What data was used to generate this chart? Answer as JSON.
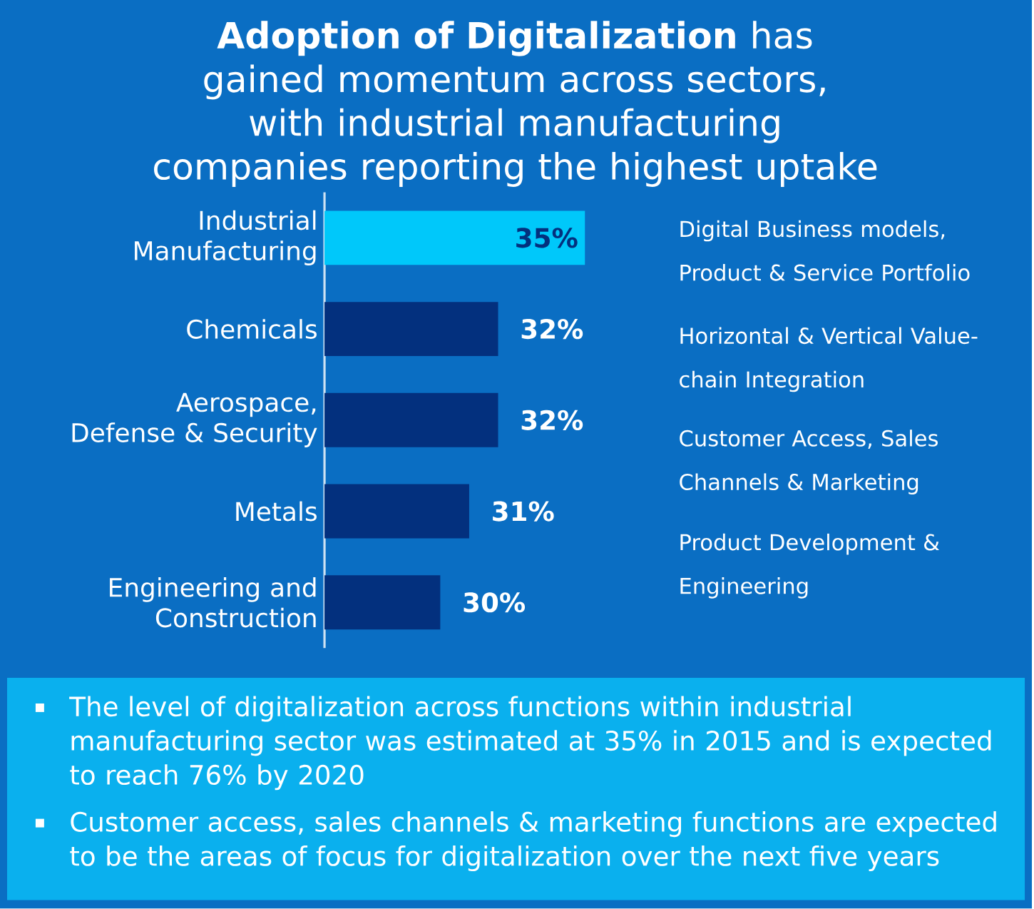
{
  "chart_data": {
    "type": "bar",
    "orientation": "horizontal",
    "title": "**Adoption of Digitalization** has gained momentum across sectors, with industrial manufacturing companies reporting the highest uptake",
    "categories": [
      "Industrial Manufacturing",
      "Chemicals",
      "Aerospace, Defense & Security",
      "Metals",
      "Engineering and Construction"
    ],
    "values": [
      35,
      32,
      32,
      31,
      30
    ],
    "colors": [
      "#00c8fa",
      "#03307e",
      "#03307e",
      "#03307e",
      "#03307e"
    ],
    "value_labels": [
      "35%",
      "32%",
      "32%",
      "31%",
      "30%"
    ],
    "xlim": [
      26,
      35.1
    ],
    "annotations": [
      "Digital Business models, Product & Service Portfolio",
      "Horizontal & Vertical Value-chain Integration",
      "Customer Access, Sales Channels & Marketing",
      "Product Development & Engineering",
      "The level of digitalization across functions within industrial manufacturing sector was estimated at 35% in 2015 and is expected to reach 76% by 2020",
      "Customer access, sales channels & marketing functions are expected to be the areas of focus for digitalization over the next five years"
    ]
  }
}
